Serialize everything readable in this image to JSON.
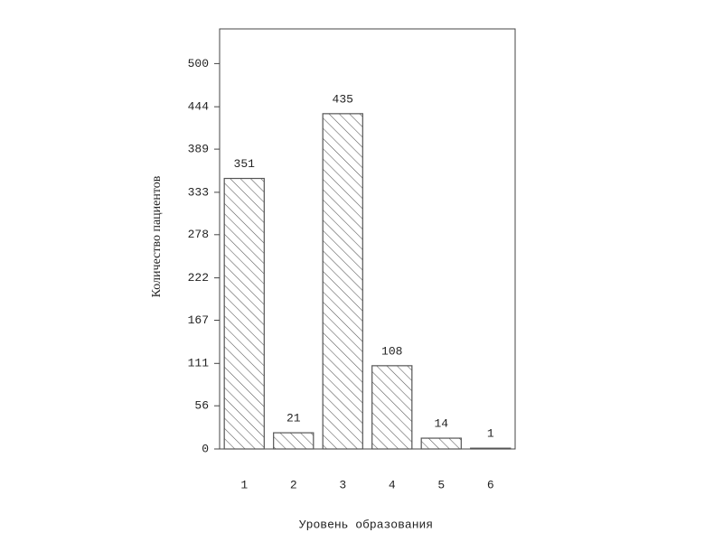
{
  "chart_data": {
    "type": "bar",
    "categories": [
      "1",
      "2",
      "3",
      "4",
      "5",
      "6"
    ],
    "values": [
      351,
      21,
      435,
      108,
      14,
      1
    ],
    "x_label": "Уровень образования",
    "y_label": "Количество пациентов",
    "ylim": [
      0,
      545
    ],
    "yticks": [
      0,
      56,
      111,
      167,
      222,
      278,
      333,
      389,
      444,
      500
    ],
    "color": "#555555",
    "hatch": true
  }
}
